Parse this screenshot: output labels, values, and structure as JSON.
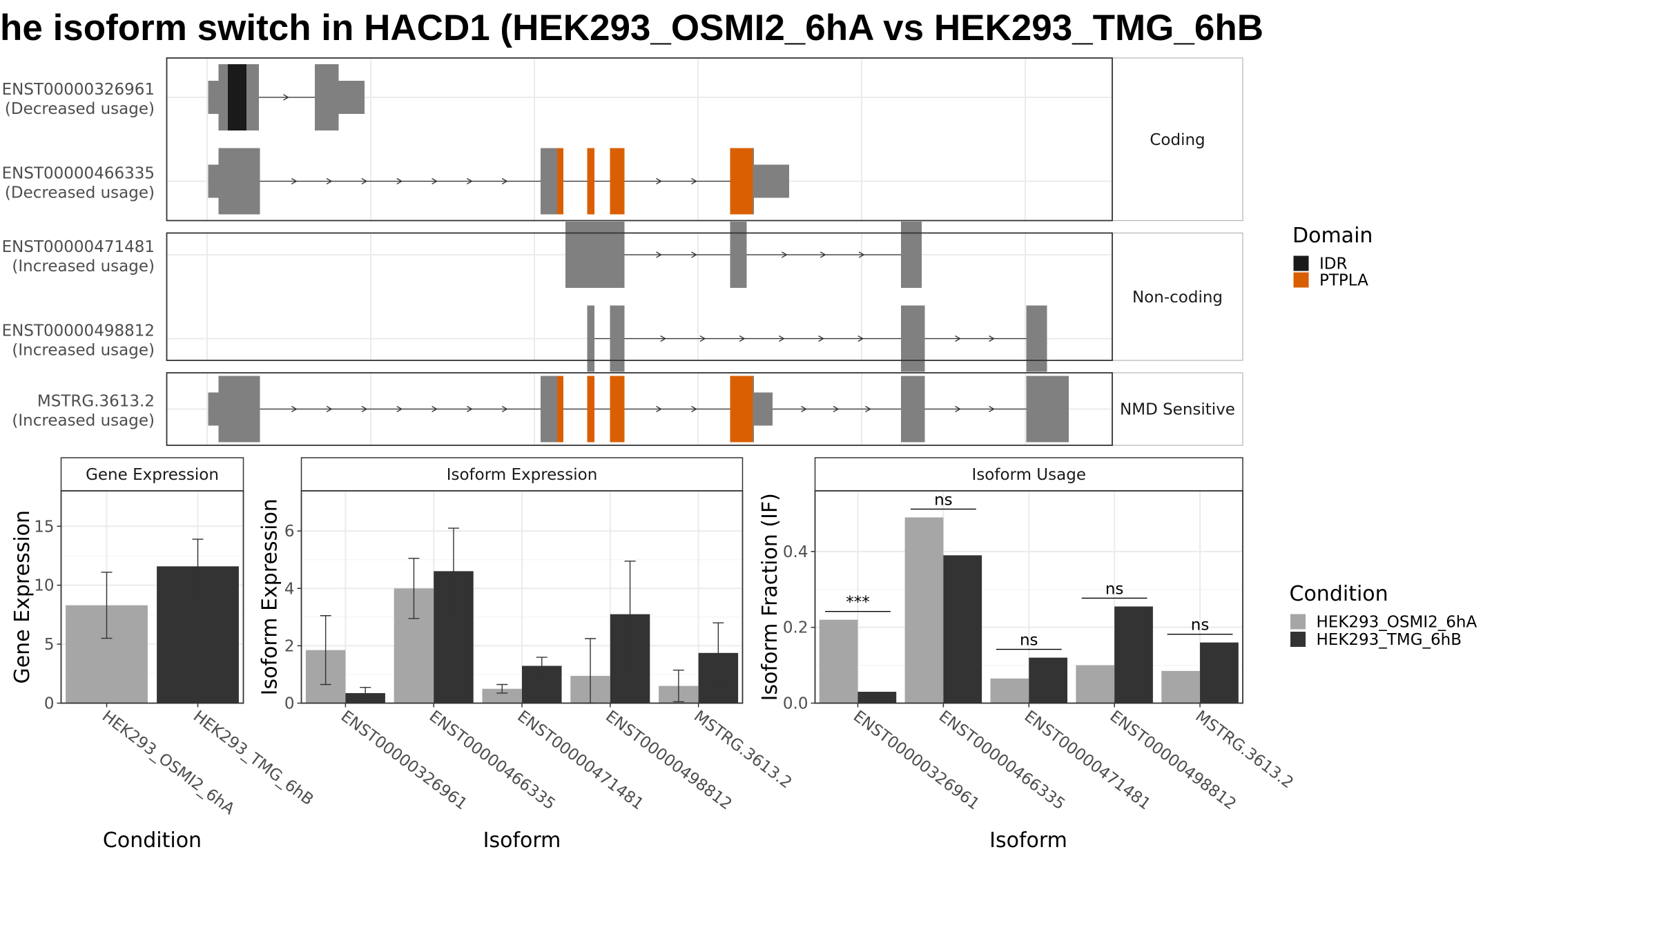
{
  "title": "he isoform switch in HACD1 (HEK293_OSMI2_6hA vs HEK293_TMG_6hB",
  "colors": {
    "exon": "#808080",
    "IDR": "#1a1a1a",
    "PTPLA": "#d95f02",
    "cond_A": "#a6a6a6",
    "cond_B": "#333333",
    "grid": "#ebebeb"
  },
  "transcripts": {
    "facets": [
      {
        "label": "Coding",
        "tracks": [
          {
            "id": "ENST00000326961",
            "usage": "(Decreased usage)",
            "blocks": [
              [
                201,
                211,
                "small"
              ],
              [
                211,
                250,
                "big"
              ],
              [
                304,
                327,
                "big"
              ],
              [
                327,
                352,
                "small"
              ]
            ],
            "domains": [
              [
                220,
                238,
                "IDR"
              ]
            ],
            "introns": [
              [
                250,
                304
              ]
            ]
          },
          {
            "id": "ENST00000466335",
            "usage": "(Decreased usage)",
            "blocks": [
              [
                201,
                211,
                "small"
              ],
              [
                211,
                251,
                "big"
              ],
              [
                522,
                544,
                "big"
              ],
              [
                567,
                574,
                "big"
              ],
              [
                589,
                603,
                "big"
              ],
              [
                705,
                728,
                "big"
              ],
              [
                728,
                762,
                "small"
              ]
            ],
            "domains": [
              [
                538,
                544,
                "PTPLA"
              ],
              [
                567,
                574,
                "PTPLA"
              ],
              [
                589,
                603,
                "PTPLA"
              ],
              [
                705,
                727,
                "PTPLA"
              ]
            ],
            "introns": [
              [
                251,
                522
              ],
              [
                544,
                567
              ],
              [
                574,
                589
              ],
              [
                603,
                705
              ]
            ]
          }
        ]
      },
      {
        "label": "Non-coding",
        "tracks": [
          {
            "id": "ENST00000471481",
            "usage": "(Increased usage)",
            "blocks": [
              [
                546,
                603,
                "big"
              ],
              [
                705,
                721,
                "big"
              ],
              [
                870,
                890,
                "big"
              ]
            ],
            "domains": [],
            "introns": [
              [
                603,
                705
              ],
              [
                721,
                870
              ]
            ]
          },
          {
            "id": "ENST00000498812",
            "usage": "(Increased usage)",
            "blocks": [
              [
                567,
                574,
                "big"
              ],
              [
                589,
                603,
                "big"
              ],
              [
                870,
                893,
                "big"
              ],
              [
                991,
                1011,
                "big"
              ]
            ],
            "domains": [],
            "introns": [
              [
                574,
                589
              ],
              [
                603,
                870
              ],
              [
                893,
                991
              ]
            ]
          }
        ]
      },
      {
        "label": "NMD Sensitive",
        "tracks": [
          {
            "id": "MSTRG.3613.2",
            "usage": "(Increased usage)",
            "blocks": [
              [
                201,
                211,
                "small"
              ],
              [
                211,
                251,
                "big"
              ],
              [
                522,
                544,
                "big"
              ],
              [
                567,
                574,
                "big"
              ],
              [
                589,
                603,
                "big"
              ],
              [
                705,
                728,
                "big"
              ],
              [
                728,
                746,
                "small"
              ],
              [
                870,
                893,
                "big"
              ],
              [
                991,
                1032,
                "big"
              ]
            ],
            "domains": [
              [
                538,
                544,
                "PTPLA"
              ],
              [
                567,
                574,
                "PTPLA"
              ],
              [
                589,
                603,
                "PTPLA"
              ],
              [
                705,
                727,
                "PTPLA"
              ]
            ],
            "introns": [
              [
                251,
                522
              ],
              [
                544,
                567
              ],
              [
                574,
                589
              ],
              [
                603,
                705
              ],
              [
                746,
                870
              ],
              [
                893,
                991
              ]
            ]
          }
        ]
      }
    ],
    "gridlines_x": [
      200,
      358,
      516,
      674,
      832,
      990
    ]
  },
  "legends": {
    "domain": {
      "title": "Domain",
      "items": [
        {
          "label": "IDR",
          "key": "IDR"
        },
        {
          "label": "PTPLA",
          "key": "PTPLA"
        }
      ]
    },
    "condition": {
      "title": "Condition",
      "items": [
        {
          "label": "HEK293_OSMI2_6hA",
          "key": "cond_A"
        },
        {
          "label": "HEK293_TMG_6hB",
          "key": "cond_B"
        }
      ]
    }
  },
  "chart_data": [
    {
      "type": "bar",
      "title": "Gene Expression",
      "xlabel": "Condition",
      "ylabel": "Gene Expression",
      "ylim": [
        0,
        18
      ],
      "yticks": [
        0,
        5,
        10,
        15
      ],
      "categories": [
        "HEK293_OSMI2_6hA",
        "HEK293_TMG_6hB"
      ],
      "values": [
        8.3,
        11.6
      ],
      "err_low": [
        5.5,
        9.3
      ],
      "err_high": [
        11.1,
        13.9
      ]
    },
    {
      "type": "bar",
      "title": "Isoform Expression",
      "xlabel": "Isoform",
      "ylabel": "Isoform Expression",
      "ylim": [
        0,
        7.4
      ],
      "yticks": [
        0,
        2,
        4,
        6
      ],
      "categories": [
        "ENST00000326961",
        "ENST00000466335",
        "ENST00000471481",
        "ENST00000498812",
        "MSTRG.3613.2"
      ],
      "series": [
        {
          "name": "HEK293_OSMI2_6hA",
          "values": [
            1.85,
            4.0,
            0.5,
            0.95,
            0.6
          ],
          "err_low": [
            0.65,
            2.95,
            0.35,
            0.0,
            0.05
          ],
          "err_high": [
            3.05,
            5.05,
            0.65,
            2.25,
            1.15
          ]
        },
        {
          "name": "HEK293_TMG_6hB",
          "values": [
            0.35,
            4.6,
            1.3,
            3.1,
            1.75
          ],
          "err_low": [
            0.15,
            3.1,
            1.0,
            1.25,
            0.7
          ],
          "err_high": [
            0.55,
            6.1,
            1.6,
            4.95,
            2.8
          ]
        }
      ]
    },
    {
      "type": "bar",
      "title": "Isoform Usage",
      "xlabel": "Isoform",
      "ylabel": "Isoform Fraction (IF)",
      "ylim": [
        0,
        0.56
      ],
      "yticks": [
        0.0,
        0.2,
        0.4
      ],
      "categories": [
        "ENST00000326961",
        "ENST00000466335",
        "ENST00000471481",
        "ENST00000498812",
        "MSTRG.3613.2"
      ],
      "series": [
        {
          "name": "HEK293_OSMI2_6hA",
          "values": [
            0.22,
            0.49,
            0.065,
            0.1,
            0.085
          ]
        },
        {
          "name": "HEK293_TMG_6hB",
          "values": [
            0.03,
            0.39,
            0.12,
            0.255,
            0.16
          ]
        }
      ],
      "significance": [
        "***",
        "ns",
        "ns",
        "ns",
        "ns"
      ]
    }
  ]
}
